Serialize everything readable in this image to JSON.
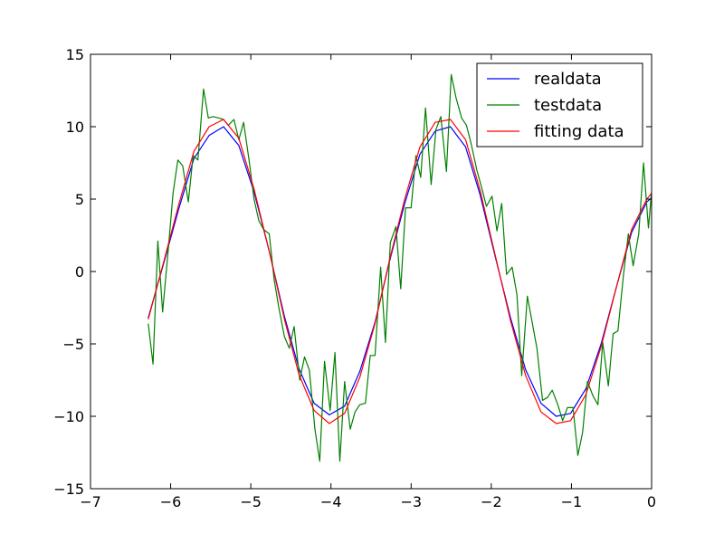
{
  "chart_data": {
    "type": "line",
    "title": "",
    "xlabel": "",
    "ylabel": "",
    "xlim": [
      -7,
      0
    ],
    "ylim": [
      -15,
      15
    ],
    "x_ticks": [
      -7,
      -6,
      -5,
      -4,
      -3,
      -2,
      -1,
      0
    ],
    "y_ticks": [
      -15,
      -10,
      -5,
      0,
      5,
      10,
      15
    ],
    "x_tick_labels": [
      "−7",
      "−6",
      "−5",
      "−4",
      "−3",
      "−2",
      "−1",
      "0"
    ],
    "y_tick_labels": [
      "−15",
      "−10",
      "−5",
      "0",
      "5",
      "10",
      "15"
    ],
    "grid": false,
    "legend_position": "top-right",
    "series": [
      {
        "name": "realdata",
        "color": "#0000ff",
        "x": [
          -6.28,
          -6.09,
          -5.9,
          -5.71,
          -5.52,
          -5.34,
          -5.15,
          -4.96,
          -4.77,
          -4.58,
          -4.4,
          -4.21,
          -4.02,
          -3.83,
          -3.64,
          -3.45,
          -3.27,
          -3.08,
          -2.89,
          -2.7,
          -2.51,
          -2.32,
          -2.14,
          -1.95,
          -1.76,
          -1.57,
          -1.38,
          -1.19,
          -1.01,
          -0.82,
          -0.63,
          -0.44,
          -0.25,
          -0.06,
          0.0
        ],
        "y": [
          -3.2,
          0.5,
          4.3,
          7.8,
          9.4,
          10.0,
          8.7,
          5.5,
          1.4,
          -3.1,
          -6.7,
          -9.1,
          -9.9,
          -9.3,
          -6.9,
          -3.5,
          0.7,
          4.7,
          8.1,
          9.7,
          10.0,
          8.6,
          5.3,
          1.0,
          -3.2,
          -6.8,
          -9.1,
          -10.0,
          -9.8,
          -8.1,
          -5.0,
          -1.1,
          2.7,
          4.8,
          5.1
        ]
      },
      {
        "name": "testdata",
        "color": "#008000",
        "x": [
          -6.28,
          -6.22,
          -6.16,
          -6.1,
          -6.03,
          -5.97,
          -5.91,
          -5.85,
          -5.78,
          -5.72,
          -5.66,
          -5.59,
          -5.53,
          -5.47,
          -5.4,
          -5.34,
          -5.28,
          -5.21,
          -5.15,
          -5.09,
          -5.02,
          -4.96,
          -4.9,
          -4.84,
          -4.77,
          -4.71,
          -4.65,
          -4.58,
          -4.52,
          -4.46,
          -4.39,
          -4.33,
          -4.27,
          -4.2,
          -4.14,
          -4.08,
          -4.01,
          -3.95,
          -3.89,
          -3.83,
          -3.76,
          -3.7,
          -3.64,
          -3.57,
          -3.51,
          -3.45,
          -3.38,
          -3.32,
          -3.26,
          -3.19,
          -3.13,
          -3.07,
          -3.0,
          -2.94,
          -2.88,
          -2.82,
          -2.75,
          -2.69,
          -2.63,
          -2.56,
          -2.5,
          -2.44,
          -2.37,
          -2.31,
          -2.25,
          -2.18,
          -2.12,
          -2.06,
          -1.99,
          -1.93,
          -1.87,
          -1.81,
          -1.74,
          -1.68,
          -1.62,
          -1.55,
          -1.49,
          -1.43,
          -1.36,
          -1.3,
          -1.24,
          -1.17,
          -1.11,
          -1.05,
          -0.98,
          -0.92,
          -0.86,
          -0.8,
          -0.73,
          -0.67,
          -0.61,
          -0.54,
          -0.48,
          -0.42,
          -0.35,
          -0.29,
          -0.23,
          -0.16,
          -0.1,
          -0.04,
          0.0
        ],
        "y": [
          -3.6,
          -6.4,
          2.1,
          -2.8,
          1.5,
          5.4,
          7.7,
          7.3,
          4.8,
          8.0,
          7.7,
          12.6,
          10.6,
          10.7,
          10.6,
          10.5,
          10.1,
          10.5,
          9.1,
          10.3,
          7.6,
          5.0,
          3.5,
          2.9,
          2.6,
          -0.5,
          -2.5,
          -4.5,
          -5.3,
          -3.8,
          -7.5,
          -5.9,
          -6.8,
          -10.9,
          -13.1,
          -6.2,
          -9.6,
          -5.6,
          -13.1,
          -7.6,
          -10.9,
          -9.7,
          -9.2,
          -9.1,
          -5.8,
          -5.8,
          0.3,
          -4.9,
          2.0,
          3.1,
          -1.2,
          4.4,
          4.4,
          8.0,
          6.5,
          11.3,
          6.0,
          9.8,
          10.7,
          6.9,
          13.6,
          12.0,
          10.6,
          10.1,
          8.8,
          7.0,
          5.8,
          4.5,
          5.2,
          2.8,
          4.7,
          -0.2,
          0.3,
          -1.6,
          -7.2,
          -1.7,
          -3.5,
          -5.3,
          -8.9,
          -8.7,
          -8.2,
          -9.2,
          -10.3,
          -9.4,
          -9.4,
          -12.7,
          -11.1,
          -7.6,
          -8.6,
          -9.2,
          -4.9,
          -7.9,
          -4.3,
          -4.1,
          -0.2,
          2.6,
          0.4,
          2.6,
          7.5,
          3.0,
          5.5
        ]
      },
      {
        "name": "fitting data",
        "color": "#ff0000",
        "x": [
          -6.28,
          -6.09,
          -5.9,
          -5.71,
          -5.52,
          -5.34,
          -5.15,
          -4.96,
          -4.77,
          -4.58,
          -4.4,
          -4.21,
          -4.02,
          -3.83,
          -3.64,
          -3.45,
          -3.27,
          -3.08,
          -2.89,
          -2.7,
          -2.51,
          -2.32,
          -2.14,
          -1.95,
          -1.76,
          -1.57,
          -1.38,
          -1.19,
          -1.01,
          -0.82,
          -0.63,
          -0.44,
          -0.25,
          -0.06,
          0.0
        ],
        "y": [
          -3.3,
          0.6,
          4.6,
          8.3,
          10.0,
          10.5,
          9.2,
          5.7,
          1.4,
          -3.3,
          -7.1,
          -9.6,
          -10.5,
          -9.8,
          -7.3,
          -3.6,
          0.8,
          5.0,
          8.6,
          10.3,
          10.5,
          9.1,
          5.6,
          1.1,
          -3.4,
          -7.2,
          -9.7,
          -10.5,
          -10.3,
          -8.5,
          -5.2,
          -1.1,
          2.9,
          5.0,
          5.4
        ]
      }
    ]
  }
}
